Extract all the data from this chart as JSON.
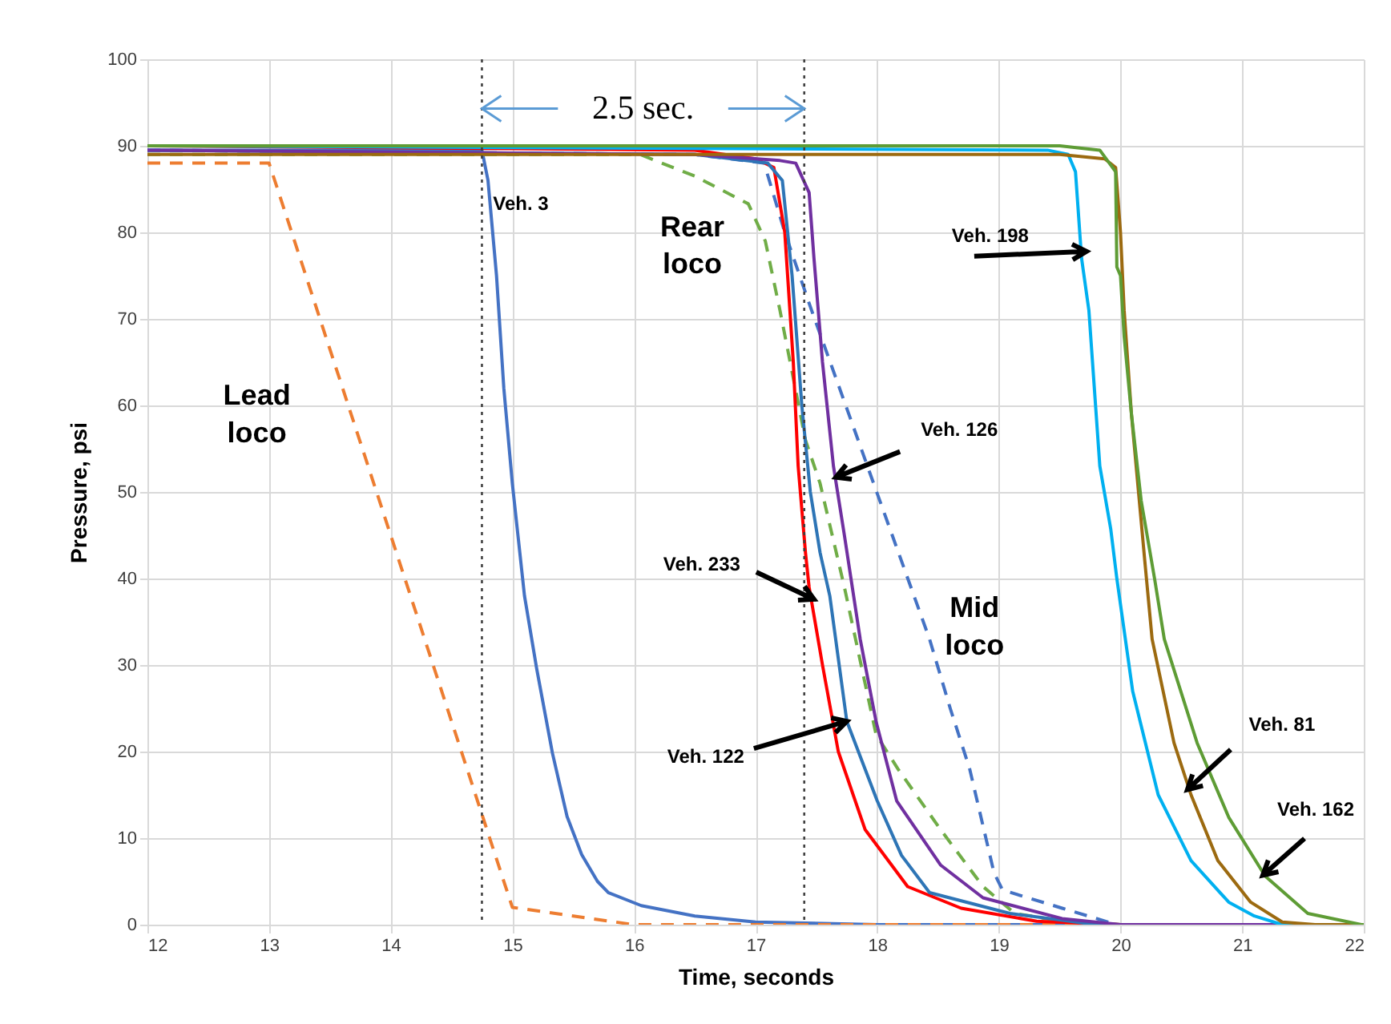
{
  "chart_data": {
    "type": "line",
    "xlabel": "Time, seconds",
    "ylabel": "Pressure, psi",
    "xlim": [
      12,
      22
    ],
    "xticks": [
      12,
      13,
      14,
      15,
      16,
      17,
      18,
      19,
      20,
      21,
      22
    ],
    "ylim": [
      0,
      100
    ],
    "yticks": [
      0,
      10,
      20,
      30,
      40,
      50,
      60,
      70,
      80,
      90,
      100
    ],
    "grid": true,
    "marker": "none",
    "series": [
      {
        "color": "#4472c4",
        "line_style": "solid",
        "x": [
          12,
          14.75,
          14.8,
          14.87,
          14.93,
          15.0,
          15.1,
          15.2,
          15.33,
          15.45,
          15.57,
          15.7,
          15.79,
          16.06,
          16.5,
          17,
          18,
          22
        ],
        "values": [
          89.5,
          89.5,
          86,
          75,
          62,
          51,
          38,
          29.6,
          19.8,
          12.5,
          8.1,
          5,
          3.7,
          2.2,
          1,
          0.3,
          0,
          0
        ]
      },
      {
        "color": "#ed7d31",
        "line_style": "dashed",
        "x": [
          12,
          13,
          15.0,
          16,
          22
        ],
        "values": [
          88,
          88,
          2,
          0,
          0
        ]
      },
      {
        "color": "#70ad47",
        "line_style": "dashed",
        "x": [
          12,
          16.05,
          16.5,
          16.94,
          17.08,
          17.2,
          17.41,
          17.53,
          17.73,
          17.99,
          18.17,
          18.52,
          18.87,
          19.13,
          19.52,
          20,
          22
        ],
        "values": [
          89,
          89,
          86.5,
          83.3,
          79,
          71,
          56,
          51,
          39,
          22,
          18,
          11,
          4.4,
          1.3,
          0.4,
          0,
          0
        ]
      },
      {
        "color": "#4472c4",
        "line_style": "dashed",
        "x": [
          12,
          16.5,
          17.07,
          17.24,
          17.46,
          17.69,
          17.97,
          18.2,
          18.43,
          18.6,
          18.76,
          18.96,
          19.03,
          19.52,
          19.97,
          22
        ],
        "values": [
          89.5,
          89,
          88,
          80,
          71,
          62,
          51,
          42,
          33,
          25,
          18,
          6,
          4,
          1.9,
          0,
          0
        ]
      },
      {
        "color": "#ff0000",
        "line_style": "solid",
        "x": [
          12,
          16.5,
          17.0,
          17.15,
          17.24,
          17.31,
          17.35,
          17.41,
          17.44,
          17.55,
          17.68,
          17.9,
          18.25,
          18.69,
          19.31,
          20,
          22
        ],
        "values": [
          90,
          89.5,
          88.5,
          87.5,
          80,
          65,
          53,
          43,
          39,
          30,
          20,
          11,
          4.4,
          1.9,
          0.4,
          0,
          0
        ]
      },
      {
        "color": "#2e75b6",
        "line_style": "solid",
        "x": [
          12,
          16.5,
          17.1,
          17.22,
          17.3,
          17.38,
          17.45,
          17.53,
          17.61,
          17.75,
          18.0,
          18.2,
          18.43,
          19.09,
          19.8,
          22
        ],
        "values": [
          89.5,
          89,
          88,
          86,
          75,
          60,
          50,
          43,
          38,
          23.5,
          14.3,
          8,
          3.7,
          1.3,
          0,
          0
        ]
      },
      {
        "color": "#7030a0",
        "line_style": "solid",
        "x": [
          12,
          16.5,
          17.2,
          17.33,
          17.44,
          17.48,
          17.55,
          17.64,
          17.73,
          17.86,
          17.99,
          18.16,
          18.52,
          18.87,
          19.52,
          20,
          22
        ],
        "values": [
          89.5,
          89,
          88.3,
          88,
          84.6,
          77,
          65,
          53,
          45,
          33,
          23.5,
          14.3,
          6.9,
          3.1,
          0.7,
          0,
          0
        ]
      },
      {
        "color": "#00b0f0",
        "line_style": "solid",
        "x": [
          12,
          19.4,
          19.57,
          19.63,
          19.68,
          19.74,
          19.83,
          19.92,
          19.97,
          20.1,
          20.31,
          20.58,
          20.89,
          21.1,
          21.33,
          22
        ],
        "values": [
          90,
          89.5,
          89,
          87,
          77,
          71,
          53,
          45.7,
          40,
          27,
          15,
          7.4,
          2.6,
          1,
          0,
          0
        ]
      },
      {
        "color": "#9c6a10",
        "line_style": "solid",
        "x": [
          12,
          19.5,
          19.87,
          19.96,
          20.0,
          20.03,
          20.09,
          20.2,
          20.26,
          20.44,
          20.58,
          20.8,
          21.07,
          21.33,
          21.6,
          22
        ],
        "values": [
          89,
          89,
          88.5,
          87.5,
          80,
          71,
          59,
          42,
          33,
          21,
          15,
          7.4,
          2.6,
          0.3,
          0,
          0
        ]
      },
      {
        "color": "#5e9c35",
        "line_style": "solid",
        "x": [
          12,
          19.5,
          19.83,
          19.96,
          19.97,
          20.0,
          20.03,
          20.09,
          20.17,
          20.28,
          20.36,
          20.63,
          20.89,
          21.19,
          21.54,
          21.98,
          22
        ],
        "values": [
          90,
          90,
          89.5,
          87,
          76,
          75,
          68,
          59,
          49,
          40,
          33,
          21,
          12.4,
          5.6,
          1.3,
          0,
          0
        ]
      }
    ],
    "ref_lines": [
      {
        "axis": "x",
        "value": 14.75,
        "color": "#404040",
        "line_style": "dotted"
      },
      {
        "axis": "x",
        "value": 17.4,
        "color": "#404040",
        "line_style": "dotted"
      }
    ],
    "annotations": [
      "Lead\nloco",
      "Rear\nloco",
      "Mid\nloco",
      "Veh. 3",
      {
        "text": "Veh. 198",
        "x": 19.72,
        "y": 77.8
      },
      {
        "text": "Veh. 126",
        "x": 17.66,
        "y": 51.7
      },
      {
        "text": "Veh. 233",
        "x": 17.48,
        "y": 37.6
      },
      {
        "text": "Veh. 122",
        "x": 17.75,
        "y": 23.5
      },
      {
        "text": "Veh. 81",
        "x": 20.55,
        "y": 15.6
      },
      {
        "text": "Veh. 162",
        "x": 21.17,
        "y": 5.7
      },
      {
        "text": "2.5 sec.",
        "x": 17.4,
        "y": 94.3
      }
    ]
  }
}
